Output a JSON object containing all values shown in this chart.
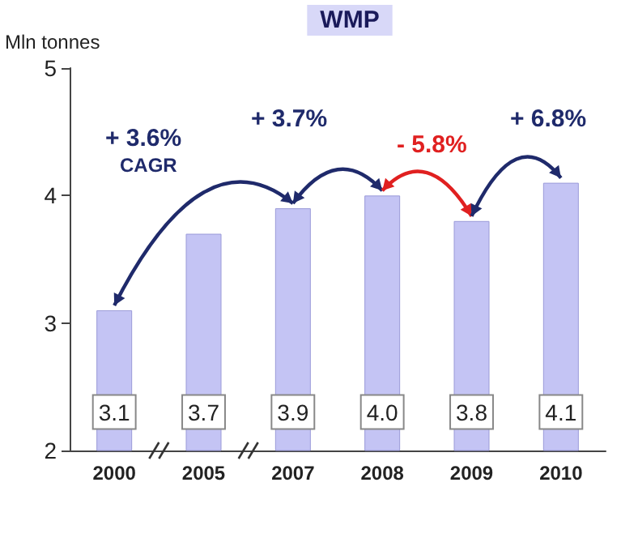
{
  "chart_data": {
    "type": "bar",
    "title": "WMP",
    "ylabel": "Mln tonnes",
    "categories": [
      "2000",
      "2005",
      "2007",
      "2008",
      "2009",
      "2010"
    ],
    "values": [
      3.1,
      3.7,
      3.9,
      4.0,
      3.8,
      4.1
    ],
    "value_labels": [
      "3.1",
      "3.7",
      "3.9",
      "4.0",
      "3.8",
      "4.1"
    ],
    "color": "#c4c4f4",
    "ylim": [
      2,
      5
    ],
    "yticks": [
      2,
      3,
      4,
      5
    ],
    "grid": false,
    "annotations": [
      "+ 3.6%",
      "CAGR",
      "+ 3.7%",
      "- 5.8%",
      "+ 6.8%"
    ]
  }
}
